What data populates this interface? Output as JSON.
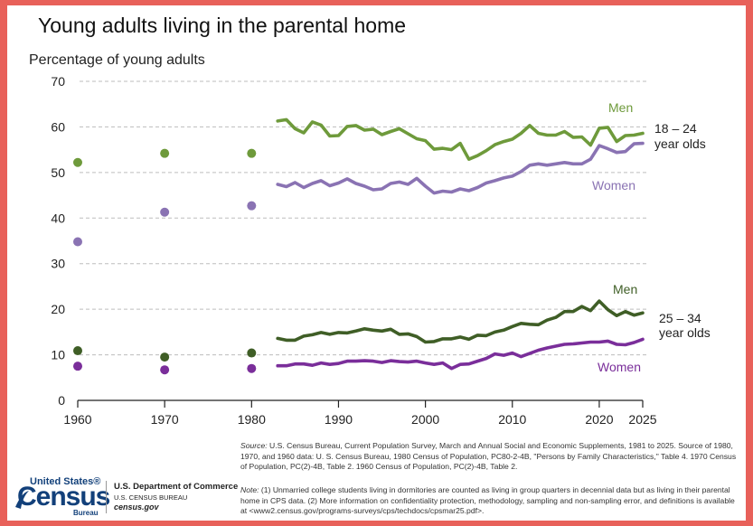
{
  "page": {
    "title": "Young adults living in the parental home",
    "y_axis_label": "Percentage of young adults"
  },
  "chart_data": {
    "type": "line",
    "title": "Young adults living in the parental home",
    "ylabel": "Percentage of young adults",
    "xlabel": "",
    "xlim": [
      1960,
      2025
    ],
    "ylim": [
      0,
      70
    ],
    "x_ticks": [
      1960,
      1970,
      1980,
      1990,
      2000,
      2010,
      2020,
      2025
    ],
    "y_ticks": [
      0,
      10,
      20,
      30,
      40,
      50,
      60,
      70
    ],
    "grid": "horizontal dashed",
    "colors": {
      "men_18_24": "#6e9a3b",
      "women_18_24": "#8a73b3",
      "men_25_34": "#3f5e26",
      "women_25_34": "#7a2e9a",
      "axis": "#222222",
      "grid": "#bdbdbd"
    },
    "group_labels": {
      "g18_24_line1": "18 – 24",
      "g18_24_line2": "year olds",
      "g25_34_line1": "25 – 34",
      "g25_34_line2": "year olds"
    },
    "series": [
      {
        "key": "men_18_24",
        "name": "Men",
        "group": "18 – 24 year olds",
        "decennial_points": {
          "x": [
            1960,
            1970,
            1980
          ],
          "y": [
            52.2,
            54.2,
            54.2
          ]
        },
        "cps_line": {
          "x": [
            1983,
            1984,
            1985,
            1986,
            1987,
            1988,
            1989,
            1990,
            1991,
            1992,
            1993,
            1994,
            1995,
            1996,
            1997,
            1998,
            1999,
            2000,
            2001,
            2002,
            2003,
            2004,
            2005,
            2006,
            2007,
            2008,
            2009,
            2010,
            2011,
            2012,
            2013,
            2014,
            2015,
            2016,
            2017,
            2018,
            2019,
            2020,
            2021,
            2022,
            2023,
            2024,
            2025
          ],
          "y": [
            61.3,
            61.6,
            59.6,
            58.7,
            61.1,
            60.4,
            58.0,
            58.1,
            60.1,
            60.3,
            59.3,
            59.5,
            58.3,
            59.0,
            59.6,
            58.5,
            57.4,
            57.0,
            55.1,
            55.3,
            55.0,
            56.4,
            52.9,
            53.7,
            54.8,
            56.1,
            56.8,
            57.3,
            58.6,
            60.3,
            58.6,
            58.2,
            58.2,
            59.0,
            57.7,
            57.8,
            56.0,
            59.7,
            59.9,
            56.8,
            58.1,
            58.2,
            58.6
          ]
        }
      },
      {
        "key": "women_18_24",
        "name": "Women",
        "group": "18 – 24 year olds",
        "decennial_points": {
          "x": [
            1960,
            1970,
            1980
          ],
          "y": [
            34.8,
            41.3,
            42.7
          ]
        },
        "cps_line": {
          "x": [
            1983,
            1984,
            1985,
            1986,
            1987,
            1988,
            1989,
            1990,
            1991,
            1992,
            1993,
            1994,
            1995,
            1996,
            1997,
            1998,
            1999,
            2000,
            2001,
            2002,
            2003,
            2004,
            2005,
            2006,
            2007,
            2008,
            2009,
            2010,
            2011,
            2012,
            2013,
            2014,
            2015,
            2016,
            2017,
            2018,
            2019,
            2020,
            2021,
            2022,
            2023,
            2024,
            2025
          ],
          "y": [
            47.4,
            46.9,
            47.8,
            46.7,
            47.6,
            48.2,
            47.1,
            47.7,
            48.6,
            47.6,
            47.0,
            46.2,
            46.4,
            47.6,
            47.9,
            47.4,
            48.7,
            47.0,
            45.5,
            45.9,
            45.7,
            46.4,
            46.0,
            46.7,
            47.7,
            48.2,
            48.8,
            49.2,
            50.2,
            51.6,
            51.9,
            51.6,
            51.9,
            52.2,
            51.9,
            51.9,
            52.9,
            55.9,
            55.2,
            54.4,
            54.6,
            56.3,
            56.4
          ]
        }
      },
      {
        "key": "men_25_34",
        "name": "Men",
        "group": "25 – 34 year olds",
        "decennial_points": {
          "x": [
            1960,
            1970,
            1980
          ],
          "y": [
            10.9,
            9.5,
            10.4
          ]
        },
        "cps_line": {
          "x": [
            1983,
            1984,
            1985,
            1986,
            1987,
            1988,
            1989,
            1990,
            1991,
            1992,
            1993,
            1994,
            1995,
            1996,
            1997,
            1998,
            1999,
            2000,
            2001,
            2002,
            2003,
            2004,
            2005,
            2006,
            2007,
            2008,
            2009,
            2010,
            2011,
            2012,
            2013,
            2014,
            2015,
            2016,
            2017,
            2018,
            2019,
            2020,
            2021,
            2022,
            2023,
            2024,
            2025
          ],
          "y": [
            13.6,
            13.2,
            13.2,
            14.1,
            14.4,
            14.9,
            14.5,
            14.9,
            14.8,
            15.2,
            15.7,
            15.4,
            15.2,
            15.6,
            14.5,
            14.6,
            14.0,
            12.8,
            12.9,
            13.5,
            13.5,
            13.9,
            13.4,
            14.3,
            14.2,
            15.0,
            15.4,
            16.2,
            16.9,
            16.7,
            16.6,
            17.6,
            18.2,
            19.5,
            19.5,
            20.6,
            19.7,
            21.8,
            19.9,
            18.6,
            19.5,
            18.7,
            19.2
          ]
        }
      },
      {
        "key": "women_25_34",
        "name": "Women",
        "group": "25 – 34 year olds",
        "decennial_points": {
          "x": [
            1960,
            1970,
            1980
          ],
          "y": [
            7.5,
            6.7,
            7.0
          ]
        },
        "cps_line": {
          "x": [
            1983,
            1984,
            1985,
            1986,
            1987,
            1988,
            1989,
            1990,
            1991,
            1992,
            1993,
            1994,
            1995,
            1996,
            1997,
            1998,
            1999,
            2000,
            2001,
            2002,
            2003,
            2004,
            2005,
            2006,
            2007,
            2008,
            2009,
            2010,
            2011,
            2012,
            2013,
            2014,
            2015,
            2016,
            2017,
            2018,
            2019,
            2020,
            2021,
            2022,
            2023,
            2024,
            2025
          ],
          "y": [
            7.6,
            7.6,
            8.0,
            8.0,
            7.7,
            8.2,
            7.9,
            8.1,
            8.6,
            8.6,
            8.7,
            8.6,
            8.3,
            8.7,
            8.5,
            8.4,
            8.6,
            8.2,
            7.9,
            8.2,
            7.0,
            7.9,
            8.0,
            8.6,
            9.2,
            10.2,
            9.9,
            10.4,
            9.6,
            10.3,
            11.0,
            11.5,
            11.9,
            12.3,
            12.4,
            12.6,
            12.8,
            12.8,
            13.0,
            12.3,
            12.2,
            12.7,
            13.4
          ]
        }
      }
    ]
  },
  "footer": {
    "source_label": "Source:",
    "source_text": " U.S. Census Bureau, Current Population Survey, March and Annual Social and Economic Supplements, 1981 to 2025. Source of 1980, 1970, and 1960 data:  U. S. Census Bureau, 1980 Census of Population, PC80-2-4B, \"Persons by Family Characteristics,\" Table 4.  1970 Census of Population, PC(2)-4B, Table 2.  1960 Census of Population, PC(2)-4B, Table 2.",
    "note_label": "Note:",
    "note_text": " (1) Unmarried college students living in dormitories are counted as living in group quarters in decennial data but as living in their parental home in CPS data. (2) More information on confidentiality protection, methodology, sampling and non-sampling error, and definitions is available at <www2.census.gov/programs-surveys/cps/techdocs/cpsmar25.pdf>."
  },
  "logo": {
    "top": "United States®",
    "main": "Census",
    "bottom": "Bureau"
  },
  "department": {
    "line1": "U.S. Department of Commerce",
    "line2": "U.S. CENSUS BUREAU",
    "line3": "census.gov"
  }
}
